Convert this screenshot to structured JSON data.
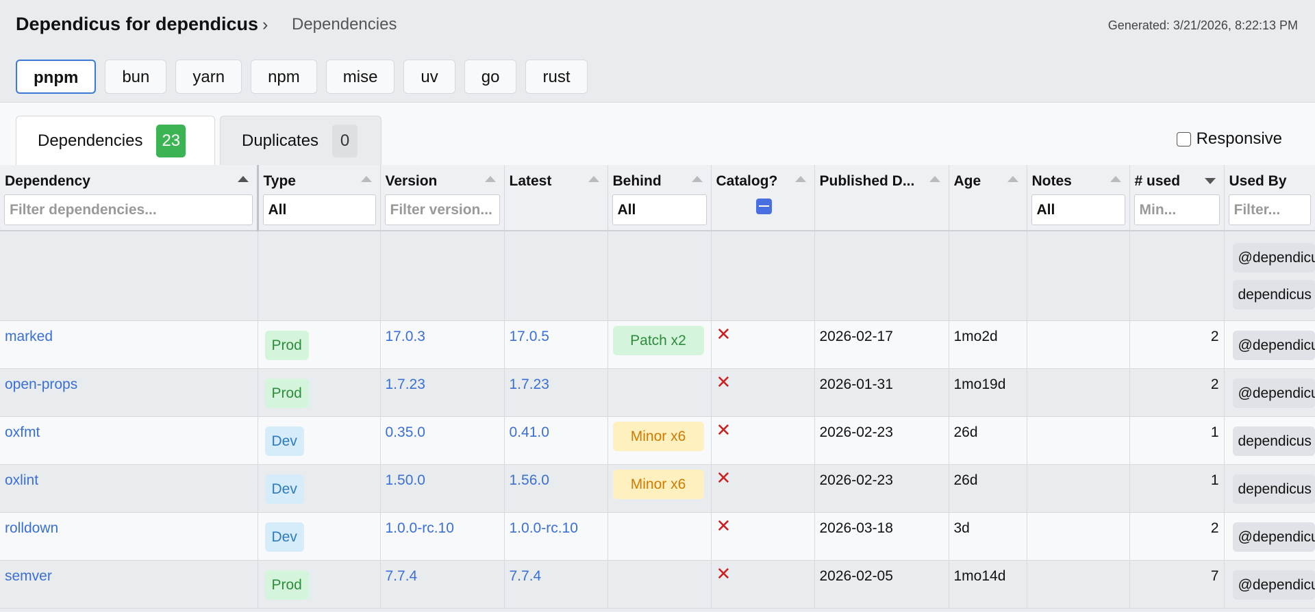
{
  "header": {
    "title": "Dependicus for dependicus",
    "breadcrumb": "Dependencies",
    "generated": "Generated: 3/21/2026, 8:22:13 PM"
  },
  "package_managers": [
    "pnpm",
    "bun",
    "yarn",
    "npm",
    "mise",
    "uv",
    "go",
    "rust"
  ],
  "tabs": [
    {
      "label": "Dependencies",
      "count": 23
    },
    {
      "label": "Duplicates",
      "count": 0
    }
  ],
  "responsive_label": "Responsive",
  "table": {
    "columns": [
      {
        "label": "Dependency",
        "filter": "Filter dependencies..."
      },
      {
        "label": "Type",
        "filter": "All"
      },
      {
        "label": "Version",
        "filter": "Filter version..."
      },
      {
        "label": "Latest"
      },
      {
        "label": "Behind",
        "filter": "All"
      },
      {
        "label": "Catalog?"
      },
      {
        "label": "Published D..."
      },
      {
        "label": "Age"
      },
      {
        "label": "Notes",
        "filter": "All"
      },
      {
        "label": "# used",
        "filter": "Min..."
      },
      {
        "label": "Used By",
        "filter": "Filter..."
      }
    ],
    "partial_row": {
      "used_by": [
        "@dependicu",
        "dependicus"
      ]
    },
    "rows": [
      {
        "name": "marked",
        "type": "Prod",
        "version": "17.0.3",
        "latest": "17.0.5",
        "behind": "Patch x2",
        "published": "2026-02-17",
        "age": "1mo2d",
        "used": 2,
        "used_by": [
          "@dependicu"
        ]
      },
      {
        "name": "open-props",
        "type": "Prod",
        "version": "1.7.23",
        "latest": "1.7.23",
        "published": "2026-01-31",
        "age": "1mo19d",
        "used": 2,
        "used_by": [
          "@dependicu"
        ]
      },
      {
        "name": "oxfmt",
        "type": "Dev",
        "version": "0.35.0",
        "latest": "0.41.0",
        "behind": "Minor x6",
        "published": "2026-02-23",
        "age": "26d",
        "used": 1,
        "used_by": [
          "dependicus"
        ]
      },
      {
        "name": "oxlint",
        "type": "Dev",
        "version": "1.50.0",
        "latest": "1.56.0",
        "behind": "Minor x6",
        "published": "2026-02-23",
        "age": "26d",
        "used": 1,
        "used_by": [
          "dependicus"
        ]
      },
      {
        "name": "rolldown",
        "type": "Dev",
        "version": "1.0.0-rc.10",
        "latest": "1.0.0-rc.10",
        "published": "2026-03-18",
        "age": "3d",
        "used": 2,
        "used_by": [
          "@dependicu"
        ]
      },
      {
        "name": "semver",
        "type": "Prod",
        "version": "7.7.4",
        "latest": "7.7.4",
        "published": "2026-02-05",
        "age": "1mo14d",
        "used": 7,
        "used_by": [
          "@dependicu"
        ]
      }
    ]
  }
}
